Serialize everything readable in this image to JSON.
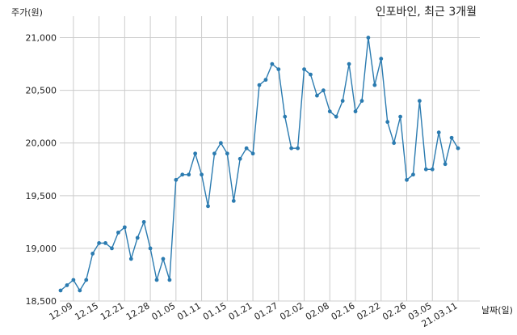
{
  "chart_data": {
    "type": "line",
    "title": "인포바인, 최근 3개월",
    "ylabel": "주가(원)",
    "xlabel": "날짜(일)",
    "ylim": [
      18500,
      21250
    ],
    "grid": true,
    "yticks": [
      18500,
      19000,
      19500,
      20000,
      20500,
      21000
    ],
    "ytick_labels": [
      "18,500",
      "19,000",
      "19,500",
      "20,000",
      "20,500",
      "21,000"
    ],
    "xticks": [
      {
        "label": "12.09",
        "index": 2
      },
      {
        "label": "12.15",
        "index": 6
      },
      {
        "label": "12.21",
        "index": 10
      },
      {
        "label": "12.28",
        "index": 14
      },
      {
        "label": "01.05",
        "index": 18
      },
      {
        "label": "01.11",
        "index": 22
      },
      {
        "label": "01.15",
        "index": 26
      },
      {
        "label": "01.21",
        "index": 30
      },
      {
        "label": "01.27",
        "index": 34
      },
      {
        "label": "02.02",
        "index": 38
      },
      {
        "label": "02.08",
        "index": 42
      },
      {
        "label": "02.16",
        "index": 46
      },
      {
        "label": "02.22",
        "index": 50
      },
      {
        "label": "02.26",
        "index": 54
      },
      {
        "label": "03.05",
        "index": 58
      },
      {
        "label": "21.03.11",
        "index": 62
      }
    ],
    "series": [
      {
        "color": "#2b7bb0",
        "values": [
          18600,
          18650,
          18700,
          18600,
          18700,
          18950,
          19050,
          19050,
          19000,
          19150,
          19200,
          18900,
          19100,
          19250,
          19000,
          18700,
          18900,
          18700,
          19650,
          19700,
          19700,
          19900,
          19700,
          19400,
          19900,
          20000,
          19900,
          19450,
          19850,
          19950,
          19900,
          20550,
          20600,
          20750,
          20700,
          20250,
          19950,
          19950,
          20700,
          20650,
          20450,
          20500,
          20300,
          20250,
          20400,
          20750,
          20300,
          20400,
          21000,
          20550,
          20800,
          20200,
          20000,
          20250,
          19650,
          19700,
          20400,
          19750,
          19750,
          20100,
          19800,
          20050,
          19950
        ]
      }
    ]
  }
}
